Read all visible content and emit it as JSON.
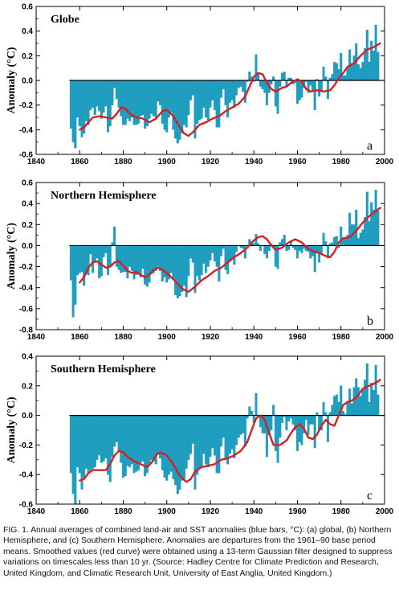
{
  "caption": "FIG. 1. Annual averages of combined land-air and SST anomalies (blue bars, °C): (a) global, (b) Northern Hemisphere, and (c) Southern Hemisphere. Anomalies are departures from the 1961–90 base period means. Smoothed values (red curve) were obtained using a 13-term Gaussian filter designed to suppress variations on timescales less than 10 yr. (Source: Hadley Centre for Climate Prediction and Research, United Kingdom, and Climatic Research Unit, University of East Anglia, United Kingdom.)",
  "colors": {
    "bars": "#1f9dbf",
    "curve": "#d62020",
    "axis": "#000000"
  },
  "chart_data": [
    {
      "type": "bar",
      "panel_letter": "a",
      "title": "Globe",
      "ylabel": "Anomaly (°C)",
      "xlabel": "",
      "xlim": [
        1840,
        2000
      ],
      "ylim": [
        -0.6,
        0.6
      ],
      "x_ticks": [
        "1840",
        "1860",
        "1880",
        "1900",
        "1920",
        "1940",
        "1960",
        "1980",
        "2000"
      ],
      "y_ticks": [
        "-0.6",
        "-0.4",
        "-0.2",
        "0.0",
        "0.2",
        "0.4",
        "0.6"
      ],
      "start_year": 1856,
      "values": [
        -0.39,
        -0.5,
        -0.55,
        -0.3,
        -0.37,
        -0.46,
        -0.43,
        -0.33,
        -0.36,
        -0.24,
        -0.22,
        -0.28,
        -0.21,
        -0.25,
        -0.31,
        -0.26,
        -0.21,
        -0.42,
        -0.37,
        -0.2,
        -0.06,
        -0.15,
        -0.22,
        -0.29,
        -0.36,
        -0.36,
        -0.31,
        -0.33,
        -0.3,
        -0.36,
        -0.36,
        -0.35,
        -0.29,
        -0.28,
        -0.39,
        -0.37,
        -0.31,
        -0.27,
        -0.29,
        -0.3,
        -0.17,
        -0.2,
        -0.35,
        -0.4,
        -0.42,
        -0.3,
        -0.26,
        -0.4,
        -0.47,
        -0.51,
        -0.48,
        -0.43,
        -0.36,
        -0.38,
        -0.28,
        -0.16,
        -0.12,
        -0.47,
        -0.35,
        -0.32,
        -0.31,
        -0.22,
        -0.3,
        -0.32,
        -0.22,
        -0.16,
        -0.24,
        -0.38,
        -0.38,
        -0.14,
        -0.07,
        -0.2,
        -0.3,
        -0.18,
        -0.16,
        -0.22,
        -0.12,
        -0.06,
        -0.05,
        -0.09,
        -0.18,
        -0.01,
        0.07,
        0.03,
        -0.01,
        0.21,
        0.06,
        -0.05,
        -0.07,
        -0.1,
        -0.2,
        -0.1,
        -0.03,
        0.03,
        -0.21,
        -0.27,
        -0.05,
        0.06,
        0.07,
        -0.05,
        0.02,
        0.02,
        -0.03,
        -0.02,
        -0.19,
        -0.16,
        -0.14,
        -0.06,
        -0.01,
        -0.1,
        -0.04,
        -0.09,
        -0.24,
        0.01,
        -0.13,
        -0.09,
        0.11,
        0.03,
        -0.15,
        0.02,
        0.05,
        0.15,
        0.14,
        0.09,
        0.22,
        0.04,
        0.04,
        0.1,
        0.25,
        0.14,
        0.2,
        0.3,
        0.13,
        0.1,
        0.15,
        0.26,
        0.41,
        0.15,
        0.32,
        0.24,
        0.45,
        0.23
      ],
      "smooth": [
        [
          1860,
          -0.4
        ],
        [
          1862,
          -0.38
        ],
        [
          1864,
          -0.34
        ],
        [
          1866,
          -0.3
        ],
        [
          1869,
          -0.29
        ],
        [
          1872,
          -0.3
        ],
        [
          1875,
          -0.31
        ],
        [
          1877,
          -0.27
        ],
        [
          1879,
          -0.22
        ],
        [
          1881,
          -0.23
        ],
        [
          1883,
          -0.27
        ],
        [
          1886,
          -0.3
        ],
        [
          1889,
          -0.31
        ],
        [
          1892,
          -0.34
        ],
        [
          1895,
          -0.31
        ],
        [
          1898,
          -0.25
        ],
        [
          1900,
          -0.24
        ],
        [
          1903,
          -0.29
        ],
        [
          1906,
          -0.38
        ],
        [
          1908,
          -0.43
        ],
        [
          1910,
          -0.45
        ],
        [
          1912,
          -0.42
        ],
        [
          1915,
          -0.36
        ],
        [
          1918,
          -0.34
        ],
        [
          1921,
          -0.31
        ],
        [
          1924,
          -0.29
        ],
        [
          1927,
          -0.25
        ],
        [
          1930,
          -0.22
        ],
        [
          1933,
          -0.19
        ],
        [
          1936,
          -0.13
        ],
        [
          1938,
          -0.05
        ],
        [
          1940,
          0.03
        ],
        [
          1942,
          0.06
        ],
        [
          1944,
          0.05
        ],
        [
          1946,
          -0.02
        ],
        [
          1948,
          -0.07
        ],
        [
          1950,
          -0.09
        ],
        [
          1953,
          -0.06
        ],
        [
          1955,
          -0.05
        ],
        [
          1957,
          -0.02
        ],
        [
          1960,
          0.01
        ],
        [
          1962,
          -0.01
        ],
        [
          1964,
          -0.07
        ],
        [
          1966,
          -0.09
        ],
        [
          1969,
          -0.08
        ],
        [
          1972,
          -0.09
        ],
        [
          1975,
          -0.08
        ],
        [
          1977,
          -0.04
        ],
        [
          1979,
          0.02
        ],
        [
          1981,
          0.06
        ],
        [
          1983,
          0.11
        ],
        [
          1986,
          0.14
        ],
        [
          1989,
          0.2
        ],
        [
          1992,
          0.25
        ],
        [
          1995,
          0.27
        ],
        [
          1998,
          0.3
        ]
      ]
    },
    {
      "type": "bar",
      "panel_letter": "b",
      "title": "Northern Hemisphere",
      "ylabel": "Anomaly (°C)",
      "xlabel": "",
      "xlim": [
        1840,
        2000
      ],
      "ylim": [
        -0.8,
        0.6
      ],
      "x_ticks": [
        "1840",
        "1860",
        "1880",
        "1900",
        "1920",
        "1940",
        "1960",
        "1980",
        "2000"
      ],
      "y_ticks": [
        "-0.8",
        "-0.6",
        "-0.4",
        "-0.2",
        "0.0",
        "0.2",
        "0.4",
        "0.6"
      ],
      "start_year": 1856,
      "values": [
        -0.33,
        -0.68,
        -0.56,
        -0.28,
        -0.26,
        -0.25,
        -0.38,
        -0.27,
        -0.28,
        -0.08,
        -0.26,
        -0.15,
        -0.12,
        -0.31,
        -0.29,
        -0.11,
        -0.07,
        -0.28,
        -0.19,
        0.03,
        0.18,
        -0.2,
        -0.23,
        -0.26,
        -0.25,
        -0.25,
        -0.31,
        -0.2,
        -0.24,
        -0.32,
        -0.28,
        -0.26,
        -0.3,
        -0.22,
        -0.37,
        -0.39,
        -0.35,
        -0.27,
        -0.26,
        -0.24,
        -0.2,
        -0.24,
        -0.34,
        -0.3,
        -0.35,
        -0.32,
        -0.26,
        -0.32,
        -0.47,
        -0.5,
        -0.48,
        -0.44,
        -0.38,
        -0.49,
        -0.29,
        -0.12,
        -0.16,
        -0.45,
        -0.29,
        -0.33,
        -0.28,
        -0.17,
        -0.26,
        -0.2,
        -0.14,
        -0.07,
        -0.15,
        -0.2,
        -0.34,
        -0.1,
        -0.03,
        -0.23,
        -0.27,
        -0.15,
        -0.13,
        -0.18,
        -0.06,
        0.0,
        -0.02,
        -0.03,
        -0.12,
        0.0,
        0.06,
        0.04,
        0.02,
        0.11,
        0.02,
        -0.05,
        0.0,
        -0.08,
        -0.12,
        -0.05,
        0.02,
        -0.02,
        -0.2,
        -0.22,
        0.03,
        0.06,
        0.1,
        -0.05,
        -0.04,
        0.04,
        -0.02,
        -0.04,
        -0.12,
        -0.05,
        -0.07,
        -0.03,
        -0.05,
        -0.06,
        -0.12,
        -0.1,
        -0.25,
        -0.06,
        -0.16,
        -0.07,
        0.12,
        0.04,
        -0.12,
        0.02,
        0.03,
        0.08,
        0.09,
        -0.02,
        0.18,
        0.07,
        0.08,
        0.1,
        0.31,
        0.2,
        0.2,
        0.34,
        0.07,
        0.12,
        0.15,
        0.27,
        0.51,
        0.23,
        0.41,
        0.34,
        0.53,
        0.33
      ],
      "smooth": [
        [
          1860,
          -0.35
        ],
        [
          1862,
          -0.3
        ],
        [
          1864,
          -0.21
        ],
        [
          1866,
          -0.16
        ],
        [
          1868,
          -0.15
        ],
        [
          1870,
          -0.18
        ],
        [
          1872,
          -0.21
        ],
        [
          1874,
          -0.2
        ],
        [
          1876,
          -0.16
        ],
        [
          1878,
          -0.15
        ],
        [
          1880,
          -0.19
        ],
        [
          1882,
          -0.24
        ],
        [
          1884,
          -0.26
        ],
        [
          1886,
          -0.25
        ],
        [
          1888,
          -0.28
        ],
        [
          1890,
          -0.3
        ],
        [
          1892,
          -0.28
        ],
        [
          1894,
          -0.23
        ],
        [
          1896,
          -0.21
        ],
        [
          1898,
          -0.23
        ],
        [
          1901,
          -0.28
        ],
        [
          1904,
          -0.34
        ],
        [
          1907,
          -0.41
        ],
        [
          1910,
          -0.44
        ],
        [
          1913,
          -0.39
        ],
        [
          1916,
          -0.33
        ],
        [
          1919,
          -0.29
        ],
        [
          1922,
          -0.24
        ],
        [
          1925,
          -0.21
        ],
        [
          1928,
          -0.16
        ],
        [
          1931,
          -0.11
        ],
        [
          1934,
          -0.07
        ],
        [
          1937,
          -0.02
        ],
        [
          1940,
          0.05
        ],
        [
          1942,
          0.08
        ],
        [
          1944,
          0.09
        ],
        [
          1946,
          0.06
        ],
        [
          1948,
          0.0
        ],
        [
          1950,
          -0.04
        ],
        [
          1953,
          -0.02
        ],
        [
          1956,
          0.03
        ],
        [
          1959,
          0.06
        ],
        [
          1962,
          0.03
        ],
        [
          1965,
          -0.03
        ],
        [
          1968,
          -0.06
        ],
        [
          1970,
          -0.07
        ],
        [
          1973,
          -0.1
        ],
        [
          1975,
          -0.11
        ],
        [
          1977,
          -0.06
        ],
        [
          1979,
          0.03
        ],
        [
          1981,
          0.07
        ],
        [
          1984,
          0.08
        ],
        [
          1987,
          0.14
        ],
        [
          1990,
          0.22
        ],
        [
          1993,
          0.28
        ],
        [
          1995,
          0.31
        ],
        [
          1998,
          0.36
        ]
      ]
    },
    {
      "type": "bar",
      "panel_letter": "c",
      "title": "Southern Hemisphere",
      "ylabel": "Anomaly (°C)",
      "xlabel": "",
      "xlim": [
        1840,
        2000
      ],
      "ylim": [
        -0.6,
        0.4
      ],
      "x_ticks": [
        "1840",
        "1860",
        "1880",
        "1900",
        "1920",
        "1940",
        "1960",
        "1980",
        "2000"
      ],
      "y_ticks": [
        "-0.6",
        "-0.4",
        "-0.2",
        "0.0",
        "0.2",
        "0.4"
      ],
      "start_year": 1856,
      "values": [
        -0.39,
        -0.53,
        -0.6,
        -0.35,
        -0.39,
        -0.5,
        -0.42,
        -0.36,
        -0.39,
        -0.37,
        -0.36,
        -0.35,
        -0.3,
        -0.27,
        -0.32,
        -0.31,
        -0.29,
        -0.4,
        -0.45,
        -0.28,
        -0.21,
        -0.18,
        -0.24,
        -0.32,
        -0.42,
        -0.41,
        -0.34,
        -0.35,
        -0.33,
        -0.39,
        -0.38,
        -0.37,
        -0.32,
        -0.31,
        -0.41,
        -0.39,
        -0.33,
        -0.3,
        -0.31,
        -0.33,
        -0.26,
        -0.29,
        -0.37,
        -0.42,
        -0.44,
        -0.4,
        -0.38,
        -0.43,
        -0.47,
        -0.53,
        -0.5,
        -0.44,
        -0.43,
        -0.36,
        -0.3,
        -0.26,
        -0.19,
        -0.5,
        -0.4,
        -0.36,
        -0.35,
        -0.26,
        -0.33,
        -0.35,
        -0.28,
        -0.22,
        -0.27,
        -0.39,
        -0.39,
        -0.21,
        -0.15,
        -0.3,
        -0.33,
        -0.26,
        -0.23,
        -0.29,
        -0.2,
        -0.15,
        -0.13,
        -0.12,
        -0.21,
        -0.02,
        0.06,
        0.03,
        -0.05,
        0.15,
        0.0,
        -0.08,
        -0.12,
        -0.12,
        -0.28,
        -0.13,
        -0.1,
        0.07,
        -0.24,
        -0.32,
        -0.15,
        -0.05,
        -0.01,
        -0.1,
        -0.04,
        -0.02,
        -0.06,
        -0.1,
        -0.24,
        -0.18,
        -0.2,
        -0.12,
        -0.03,
        -0.13,
        -0.06,
        -0.06,
        -0.22,
        0.02,
        -0.1,
        -0.1,
        0.09,
        0.02,
        -0.18,
        0.02,
        0.07,
        0.13,
        0.14,
        0.09,
        0.2,
        0.03,
        0.01,
        0.09,
        0.18,
        0.08,
        0.19,
        0.25,
        0.19,
        0.13,
        0.17,
        0.24,
        0.35,
        0.09,
        0.22,
        0.17,
        0.34,
        0.14
      ],
      "smooth": [
        [
          1860,
          -0.44
        ],
        [
          1862,
          -0.43
        ],
        [
          1864,
          -0.39
        ],
        [
          1866,
          -0.37
        ],
        [
          1869,
          -0.37
        ],
        [
          1872,
          -0.37
        ],
        [
          1874,
          -0.33
        ],
        [
          1876,
          -0.27
        ],
        [
          1878,
          -0.24
        ],
        [
          1880,
          -0.25
        ],
        [
          1882,
          -0.28
        ],
        [
          1885,
          -0.31
        ],
        [
          1888,
          -0.33
        ],
        [
          1891,
          -0.35
        ],
        [
          1893,
          -0.32
        ],
        [
          1895,
          -0.27
        ],
        [
          1897,
          -0.25
        ],
        [
          1900,
          -0.27
        ],
        [
          1903,
          -0.33
        ],
        [
          1906,
          -0.41
        ],
        [
          1909,
          -0.45
        ],
        [
          1911,
          -0.43
        ],
        [
          1913,
          -0.38
        ],
        [
          1916,
          -0.35
        ],
        [
          1919,
          -0.34
        ],
        [
          1922,
          -0.33
        ],
        [
          1925,
          -0.3
        ],
        [
          1928,
          -0.29
        ],
        [
          1931,
          -0.27
        ],
        [
          1934,
          -0.24
        ],
        [
          1937,
          -0.18
        ],
        [
          1939,
          -0.1
        ],
        [
          1941,
          -0.02
        ],
        [
          1943,
          0.0
        ],
        [
          1945,
          -0.03
        ],
        [
          1947,
          -0.12
        ],
        [
          1949,
          -0.2
        ],
        [
          1952,
          -0.2
        ],
        [
          1955,
          -0.17
        ],
        [
          1957,
          -0.12
        ],
        [
          1959,
          -0.08
        ],
        [
          1961,
          -0.06
        ],
        [
          1963,
          -0.09
        ],
        [
          1965,
          -0.15
        ],
        [
          1967,
          -0.16
        ],
        [
          1969,
          -0.13
        ],
        [
          1971,
          -0.07
        ],
        [
          1973,
          -0.03
        ],
        [
          1975,
          -0.06
        ],
        [
          1977,
          -0.07
        ],
        [
          1979,
          0.0
        ],
        [
          1981,
          0.07
        ],
        [
          1983,
          0.09
        ],
        [
          1985,
          0.1
        ],
        [
          1987,
          0.12
        ],
        [
          1990,
          0.18
        ],
        [
          1993,
          0.2
        ],
        [
          1996,
          0.22
        ],
        [
          1998,
          0.24
        ]
      ]
    }
  ]
}
